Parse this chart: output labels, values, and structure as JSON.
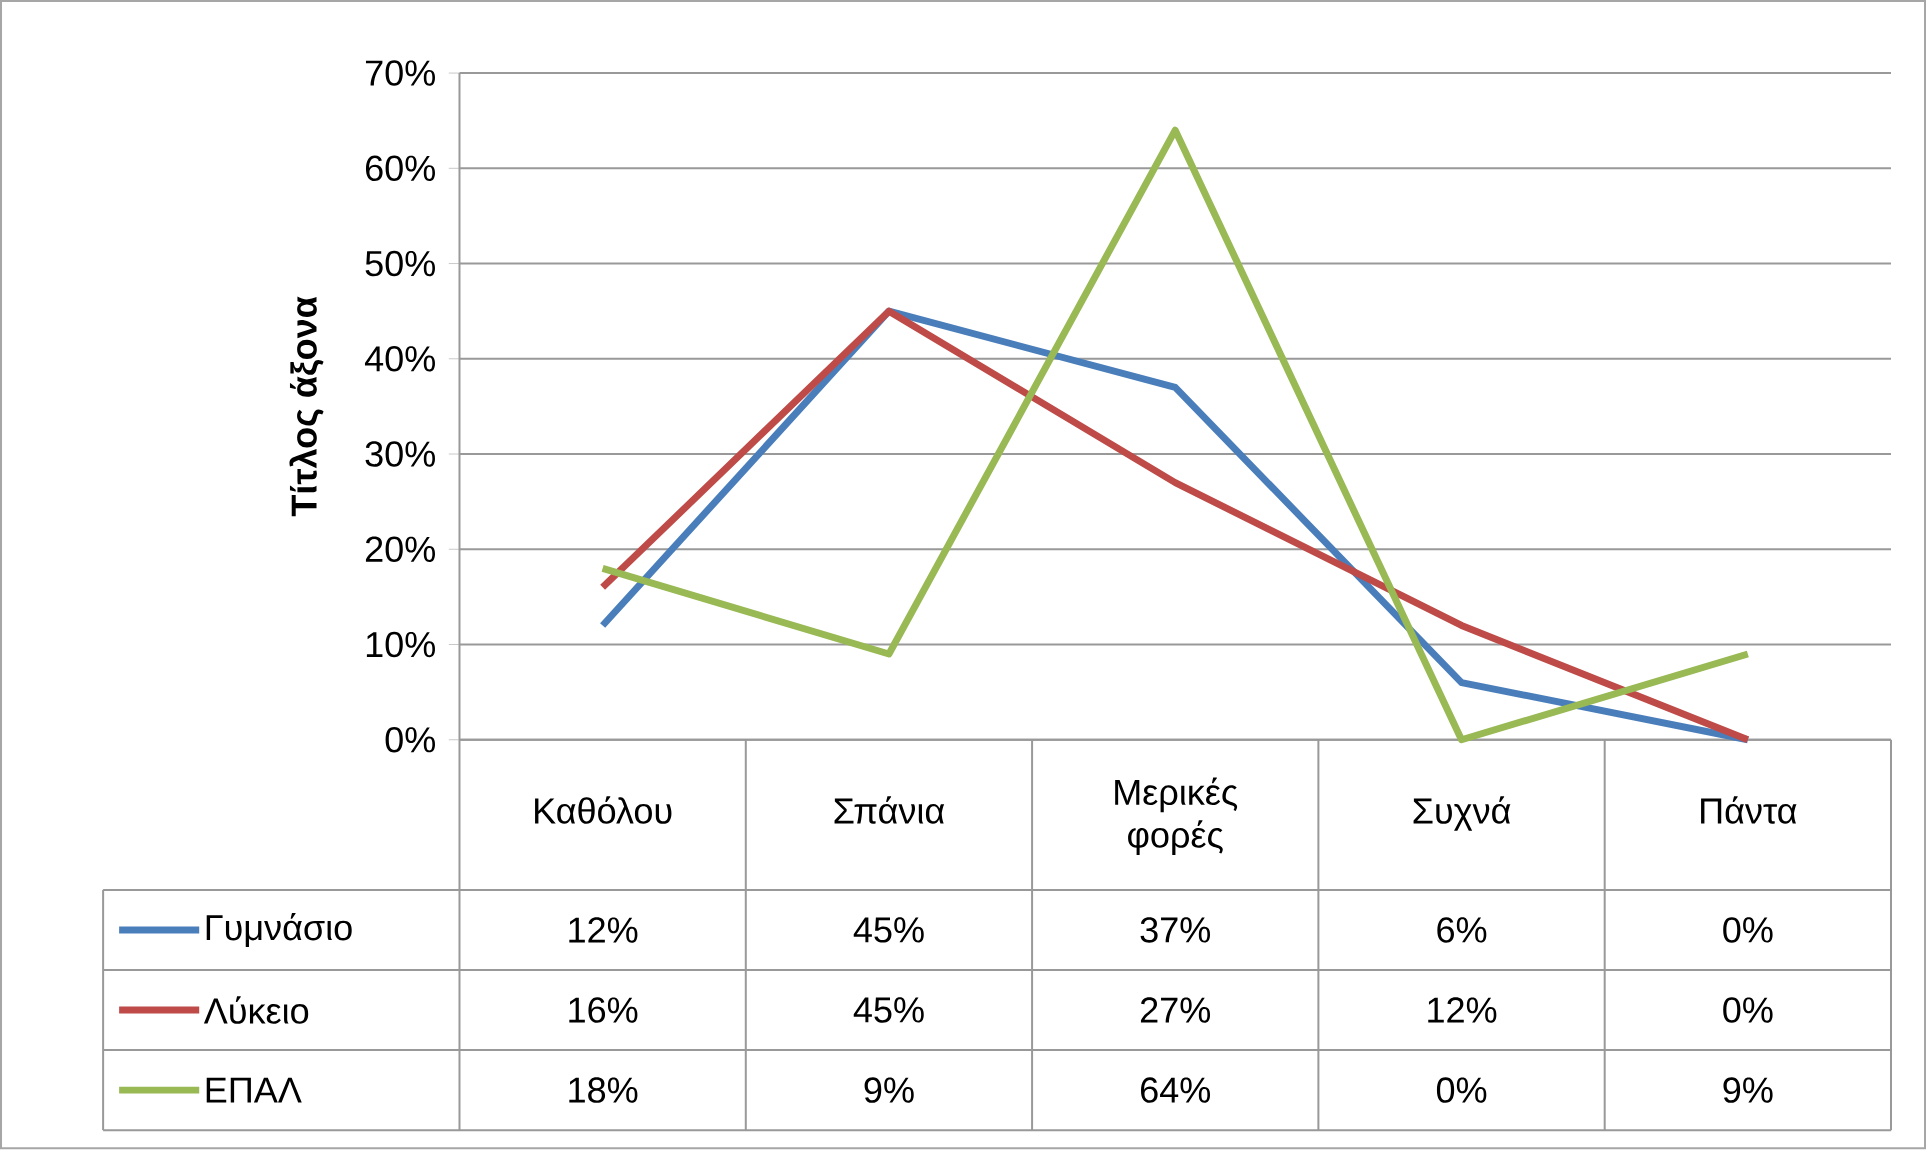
{
  "chart_data": {
    "type": "line",
    "ylabel": "Τίτλος άξονα",
    "categories": [
      "Καθόλου",
      "Σπάνια",
      "Μερικές φορές",
      "Συχνά",
      "Πάντα"
    ],
    "series": [
      {
        "name": "Γυμνάσιο",
        "color": "#4a7ebb",
        "values": [
          12,
          45,
          37,
          6,
          0
        ],
        "value_labels": [
          "12%",
          "45%",
          "37%",
          "6%",
          "0%"
        ]
      },
      {
        "name": "Λύκειο",
        "color": "#be4b48",
        "values": [
          16,
          45,
          27,
          12,
          0
        ],
        "value_labels": [
          "16%",
          "45%",
          "27%",
          "12%",
          "0%"
        ]
      },
      {
        "name": "ΕΠΑΛ",
        "color": "#98b954",
        "values": [
          18,
          9,
          64,
          0,
          9
        ],
        "value_labels": [
          "18%",
          "9%",
          "64%",
          "0%",
          "9%"
        ]
      }
    ],
    "ylim": [
      0,
      70
    ],
    "yticks": [
      {
        "value": 0,
        "label": "0%"
      },
      {
        "value": 10,
        "label": "10%"
      },
      {
        "value": 20,
        "label": "20%"
      },
      {
        "value": 30,
        "label": "30%"
      },
      {
        "value": 40,
        "label": "40%"
      },
      {
        "value": 50,
        "label": "50%"
      },
      {
        "value": 60,
        "label": "60%"
      },
      {
        "value": 70,
        "label": "70%"
      }
    ],
    "grid": "y",
    "legend": "bottom",
    "marker": "none",
    "line_style": "solid"
  }
}
